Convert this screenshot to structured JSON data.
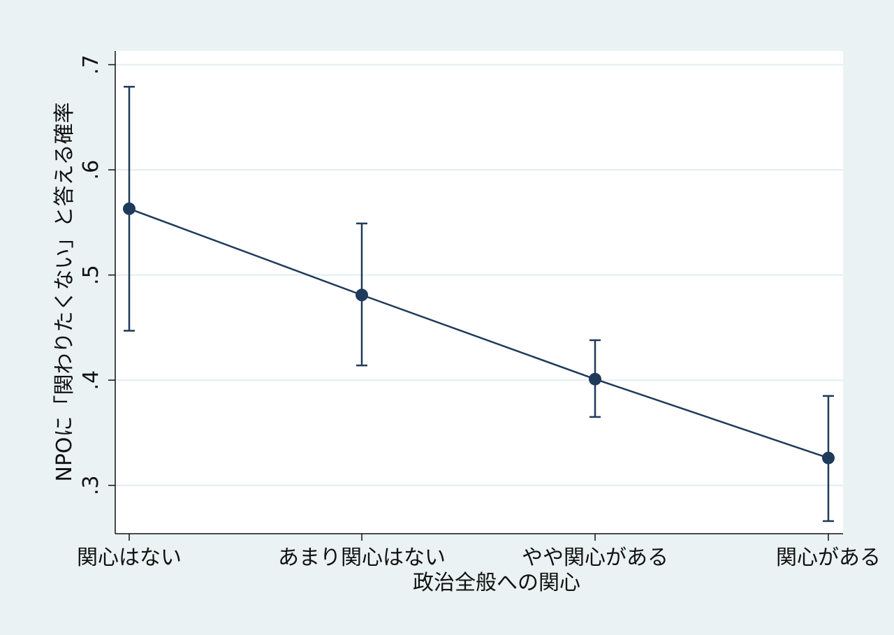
{
  "chart_data": {
    "type": "line",
    "title": "",
    "xlabel": "政治全般への関心",
    "ylabel": "NPOに「関わりたくない」と答える確率",
    "categories": [
      "関心はない",
      "あまり関心はない",
      "やや関心がある",
      "関心がある"
    ],
    "series": [
      {
        "values": [
          0.563,
          0.481,
          0.401,
          0.326
        ],
        "ci_low": [
          0.447,
          0.414,
          0.365,
          0.266
        ],
        "ci_high": [
          0.679,
          0.549,
          0.438,
          0.385
        ]
      }
    ],
    "yticks": [
      0.3,
      0.4,
      0.5,
      0.6,
      0.7
    ],
    "ytick_labels": [
      ".3",
      ".4",
      ".5",
      ".6",
      ".7"
    ],
    "ylim": [
      0.254,
      0.713
    ],
    "grid": true,
    "colors": {
      "line": "#1f3a5a",
      "grid": "#e3eef0",
      "plot_bg": "#ffffff",
      "page_bg": "#eaf2f3"
    }
  }
}
